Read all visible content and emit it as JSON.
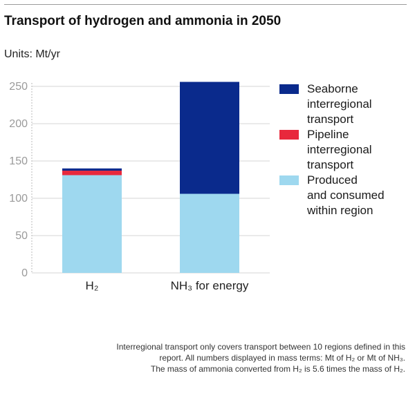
{
  "chart_data": {
    "type": "bar",
    "stacked": true,
    "title": "Transport of hydrogen and ammonia in 2050",
    "units_label": "Units: Mt/yr",
    "categories": [
      "H₂",
      "NH₃ for energy"
    ],
    "ylim": [
      0,
      250
    ],
    "yticks": [
      0,
      50,
      100,
      150,
      200,
      250
    ],
    "grid": true,
    "legend_position": "right",
    "series": [
      {
        "name": "Produced and consumed within region",
        "legend_lines": [
          "Produced",
          "and consumed",
          "within region"
        ],
        "color": "#9ed8ef",
        "values": [
          131,
          106
        ]
      },
      {
        "name": "Pipeline interregional transport",
        "legend_lines": [
          "Pipeline",
          "interregional",
          "transport"
        ],
        "color": "#e8283c",
        "values": [
          6,
          0
        ]
      },
      {
        "name": "Seaborne interregional transport",
        "legend_lines": [
          "Seaborne",
          "interregional",
          "transport"
        ],
        "color": "#0a2a8c",
        "values": [
          3,
          150
        ]
      }
    ],
    "legend_order": [
      2,
      1,
      0
    ]
  },
  "footnote": [
    "Interregional transport only covers transport between 10 regions defined in this",
    "report. All numbers displayed in mass terms: Mt of H₂ or Mt of NH₃.",
    "The mass of ammonia converted from H₂ is 5.6 times the mass of H₂."
  ]
}
